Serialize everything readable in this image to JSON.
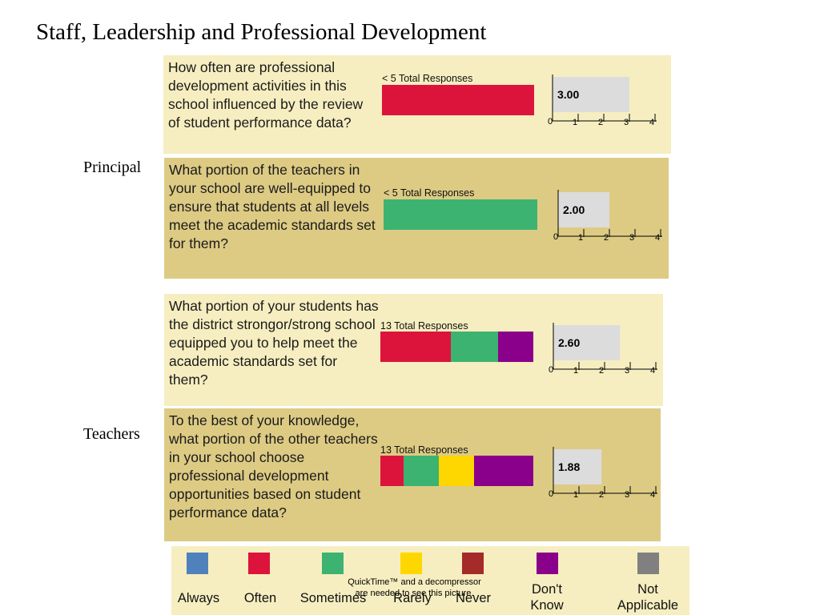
{
  "title": "Staff, Leadership and Professional Development",
  "groups": [
    {
      "label": "Principal"
    },
    {
      "label": "Teachers"
    }
  ],
  "colors": {
    "Always": "#4f81bd",
    "Often": "#dc143c",
    "Sometimes": "#3cb371",
    "Rarely": "#ffd700",
    "Never": "#a52a2a",
    "Dont Know": "#8b008b",
    "Not Applicable": "#808080"
  },
  "chart_data": [
    {
      "type": "bar",
      "title": "How often are professional development activities in this school influenced by the review of student performance data?",
      "responses_label": "< 5 Total Responses",
      "series": [
        {
          "name": "Often",
          "share": 1.0
        }
      ],
      "mean": 3.0,
      "mean_label": "3.00",
      "xlim": [
        0,
        4
      ],
      "ticks": [
        "0",
        "1",
        "2",
        "3",
        "4"
      ]
    },
    {
      "type": "bar",
      "title": "What portion of the teachers in your school are well-equipped to ensure that students at all levels meet the academic standards set for them?",
      "responses_label": "< 5 Total Responses",
      "series": [
        {
          "name": "Sometimes",
          "share": 1.0
        }
      ],
      "mean": 2.0,
      "mean_label": "2.00",
      "xlim": [
        0,
        4
      ],
      "ticks": [
        "0",
        "1",
        "2",
        "3",
        "4"
      ]
    },
    {
      "type": "bar",
      "title": "What portion of your students has the district strongor/strong school equipped you to help meet the academic standards set for them?",
      "responses_label": "13 Total Responses",
      "series": [
        {
          "name": "Often",
          "share": 0.46
        },
        {
          "name": "Sometimes",
          "share": 0.31
        },
        {
          "name": "Dont Know",
          "share": 0.23
        }
      ],
      "mean": 2.6,
      "mean_label": "2.60",
      "xlim": [
        0,
        4
      ],
      "ticks": [
        "0",
        "1",
        "2",
        "3",
        "4"
      ]
    },
    {
      "type": "bar",
      "title": "To the best of your knowledge, what portion of the other teachers in your school choose professional development opportunities based on student performance data?",
      "responses_label": "13 Total Responses",
      "series": [
        {
          "name": "Often",
          "share": 0.15
        },
        {
          "name": "Sometimes",
          "share": 0.23
        },
        {
          "name": "Rarely",
          "share": 0.23
        },
        {
          "name": "Dont Know",
          "share": 0.39
        }
      ],
      "mean": 1.88,
      "mean_label": "1.88",
      "xlim": [
        0,
        4
      ],
      "ticks": [
        "0",
        "1",
        "2",
        "3",
        "4"
      ]
    }
  ],
  "legend": {
    "items": [
      {
        "key": "Always",
        "label": "Always"
      },
      {
        "key": "Often",
        "label": "Often"
      },
      {
        "key": "Sometimes",
        "label": "Sometimes"
      },
      {
        "key": "Rarely",
        "label": "Rarely"
      },
      {
        "key": "Never",
        "label": "Never"
      },
      {
        "key": "Dont Know",
        "label": "Don't Know"
      },
      {
        "key": "Not Applicable",
        "label": "Not Applicable"
      }
    ],
    "overlay_note": "QuickTime™ and a decompressor are needed to see this picture."
  }
}
